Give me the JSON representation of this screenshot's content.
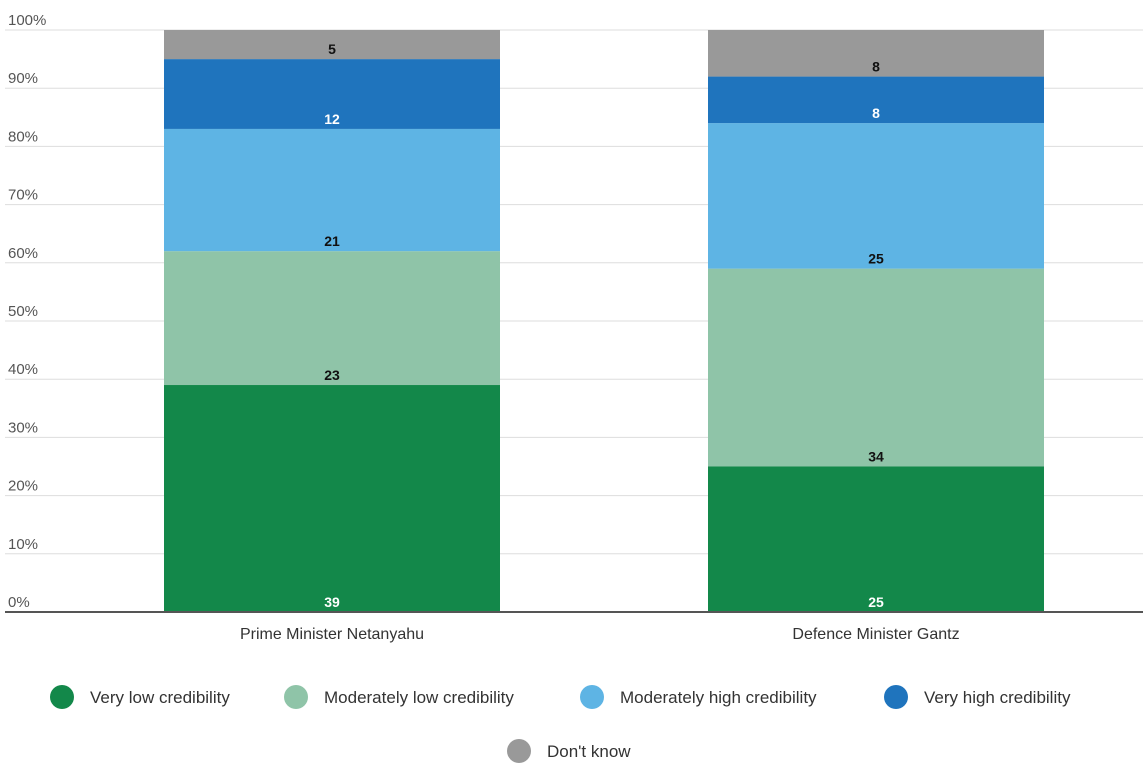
{
  "chart_data": {
    "type": "bar",
    "stacked": true,
    "categories": [
      "Prime Minister Netanyahu",
      "Defence Minister Gantz"
    ],
    "series": [
      {
        "name": "Very low credibility",
        "color": "#13884a",
        "label_color": "#ffffff",
        "values": [
          39,
          25
        ]
      },
      {
        "name": "Moderately low credibility",
        "color": "#8fc4a8",
        "label_color": "#111111",
        "values": [
          23,
          34
        ]
      },
      {
        "name": "Moderately high credibility",
        "color": "#5eb4e4",
        "label_color": "#111111",
        "values": [
          21,
          25
        ]
      },
      {
        "name": "Very high credibility",
        "color": "#1f74bd",
        "label_color": "#ffffff",
        "values": [
          12,
          8
        ]
      },
      {
        "name": "Don't know",
        "color": "#999999",
        "label_color": "#111111",
        "values": [
          5,
          8
        ]
      }
    ],
    "y_ticks": [
      "0%",
      "10%",
      "20%",
      "30%",
      "40%",
      "50%",
      "60%",
      "70%",
      "80%",
      "90%",
      "100%"
    ],
    "ylim": [
      0,
      100
    ],
    "grid": true,
    "legend_position": "bottom",
    "title": "",
    "xlabel": "",
    "ylabel": ""
  }
}
